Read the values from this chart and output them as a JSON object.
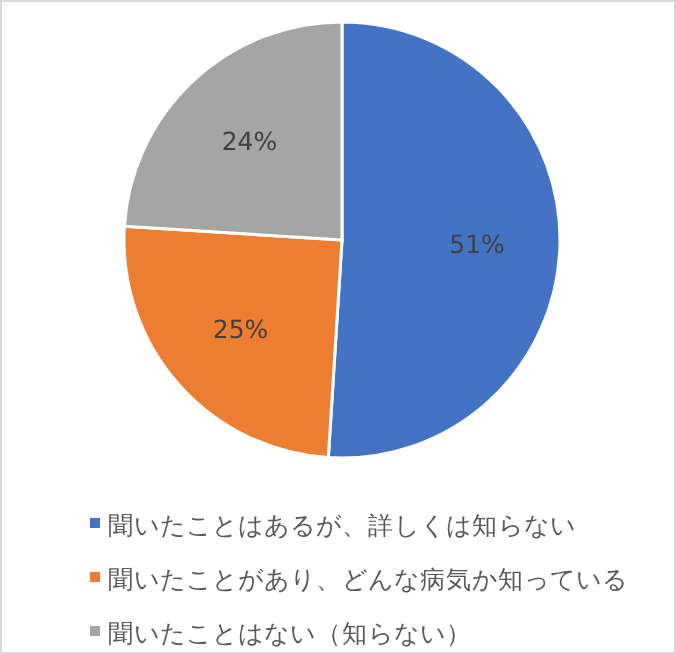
{
  "chart_data": {
    "type": "pie",
    "categories": [
      "聞いたことはあるが、詳しくは知らない",
      "聞いたことがあり、どんな病気か知っている",
      "聞いたことはない（知らない）"
    ],
    "values": [
      51,
      25,
      24
    ],
    "colors": [
      "#4472c4",
      "#ed7d31",
      "#a5a5a5"
    ],
    "value_labels": [
      "51%",
      "25%",
      "24%"
    ],
    "legend": "bottom"
  }
}
